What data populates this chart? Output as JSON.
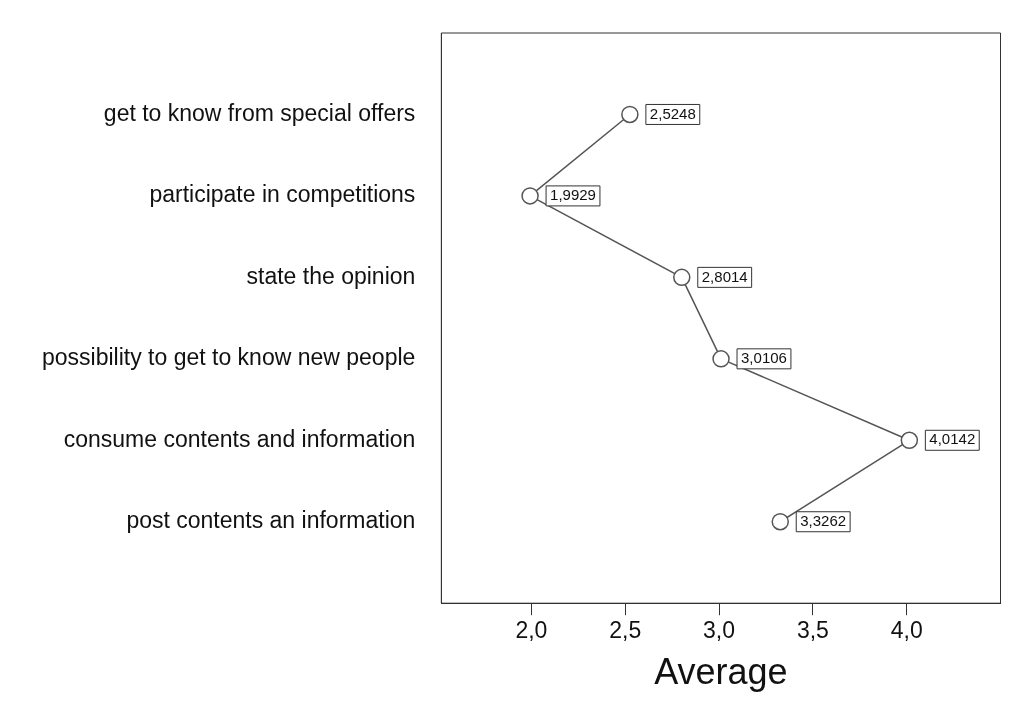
{
  "chart_data": {
    "type": "line",
    "orientation": "horizontal",
    "xlabel": "Average",
    "categories": [
      "get to know from special offers",
      "participate in competitions",
      "state the opinion",
      "possibility to get to know new people",
      "consume contents and information",
      "post contents an information"
    ],
    "series": [
      {
        "color": "#555555",
        "values": [
          2.5248,
          1.9929,
          2.8014,
          3.0106,
          4.0142,
          3.3262
        ],
        "value_labels": [
          "2,5248",
          "1,9929",
          "2,8014",
          "3,0106",
          "4,0142",
          "3,3262"
        ]
      }
    ],
    "xlim": [
      1.52,
      4.5
    ],
    "xticks": [
      {
        "value": 2,
        "label": "2,0"
      },
      {
        "value": 2.5,
        "label": "2,5"
      },
      {
        "value": 3,
        "label": "3,0"
      },
      {
        "value": 3.5,
        "label": "3,5"
      },
      {
        "value": 4,
        "label": "4,0"
      }
    ],
    "marker": "circle",
    "line_style": "solid",
    "grid": false,
    "legend": false
  }
}
